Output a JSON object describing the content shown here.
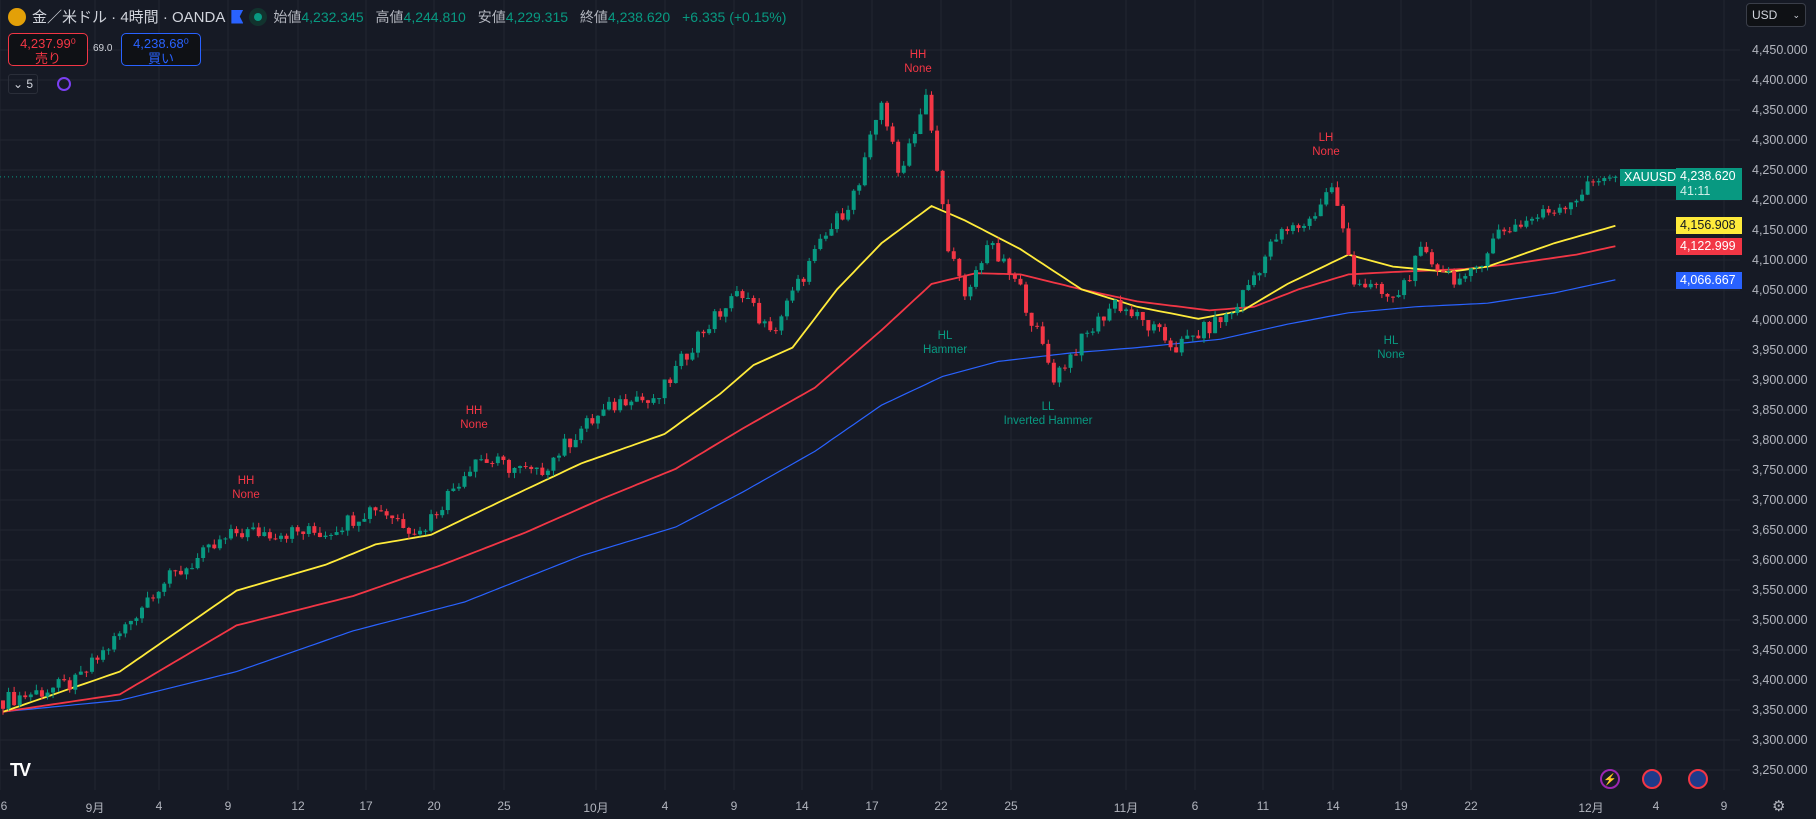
{
  "header": {
    "title": "金／米ドル · 4時間 · OANDA",
    "open_label": "始値",
    "open": "4,232.345",
    "high_label": "高値",
    "high": "4,244.810",
    "low_label": "安値",
    "low": "4,229.315",
    "close_label": "終値",
    "close": "4,238.620",
    "change": "+6.335 (+0.15%)"
  },
  "trade": {
    "sell_price": "4,237.99⁰",
    "sell_label": "売り",
    "spread": "69.0",
    "buy_price": "4,238.68⁰",
    "buy_label": "買い"
  },
  "indicators": {
    "collapse_count": "5"
  },
  "currency": {
    "label": "USD"
  },
  "price_axis": [
    "4,450.000",
    "4,400.000",
    "4,350.000",
    "4,300.000",
    "4,250.000",
    "4,200.000",
    "4,150.000",
    "4,100.000",
    "4,050.000",
    "4,000.000",
    "3,950.000",
    "3,900.000",
    "3,850.000",
    "3,800.000",
    "3,750.000",
    "3,700.000",
    "3,650.000",
    "3,600.000",
    "3,550.000",
    "3,500.000",
    "3,450.000",
    "3,400.000",
    "3,350.000",
    "3,300.000",
    "3,250.000"
  ],
  "badges": {
    "symbol": "XAUUSD",
    "last": "4,238.620",
    "countdown": "41:11",
    "ma_yellow": "4,156.908",
    "ma_red": "4,122.999",
    "ma_blue": "4,066.667"
  },
  "date_axis": [
    "6",
    "9月",
    "4",
    "9",
    "12",
    "17",
    "20",
    "25",
    "10月",
    "4",
    "9",
    "14",
    "17",
    "22",
    "25",
    "11月",
    "6",
    "11",
    "14",
    "19",
    "22",
    "12月",
    "4",
    "9"
  ],
  "annotations": [
    {
      "a": "HH",
      "b": "None"
    },
    {
      "a": "HH",
      "b": "None"
    },
    {
      "a": "HH",
      "b": "None"
    },
    {
      "a": "LH",
      "b": "None"
    },
    {
      "a": "HL",
      "b": "Hammer"
    },
    {
      "a": "LL",
      "b": "Inverted Hammer"
    },
    {
      "a": "HL",
      "b": "None"
    }
  ],
  "colors": {
    "up": "#089981",
    "down": "#f23645",
    "ma_yellow": "#ffeb3b",
    "ma_red": "#f23645",
    "ma_blue": "#2962ff"
  },
  "chart_data": {
    "type": "candlestick",
    "price_range": [
      3250,
      4450
    ],
    "bars": 290,
    "price_path": [
      [
        0,
        3366
      ],
      [
        13,
        3395
      ],
      [
        21,
        3476
      ],
      [
        27,
        3550
      ],
      [
        42,
        3646
      ],
      [
        58,
        3646
      ],
      [
        67,
        3690
      ],
      [
        75,
        3646
      ],
      [
        85,
        3771
      ],
      [
        96,
        3742
      ],
      [
        104,
        3819
      ],
      [
        113,
        3877
      ],
      [
        117,
        3858
      ],
      [
        125,
        3974
      ],
      [
        133,
        4050
      ],
      [
        138,
        3974
      ],
      [
        146,
        4109
      ],
      [
        154,
        4224
      ],
      [
        158,
        4369
      ],
      [
        161,
        4244
      ],
      [
        166,
        4369
      ],
      [
        170,
        4128
      ],
      [
        173,
        4031
      ],
      [
        177,
        4128
      ],
      [
        183,
        4050
      ],
      [
        189,
        3906
      ],
      [
        194,
        3964
      ],
      [
        200,
        4031
      ],
      [
        211,
        3954
      ],
      [
        221,
        4012
      ],
      [
        229,
        4137
      ],
      [
        235,
        4166
      ],
      [
        239,
        4224
      ],
      [
        243,
        4070
      ],
      [
        250,
        4031
      ],
      [
        255,
        4109
      ],
      [
        263,
        4060
      ],
      [
        269,
        4147
      ],
      [
        277,
        4176
      ],
      [
        283,
        4205
      ],
      [
        288,
        4244
      ],
      [
        290,
        4238
      ]
    ],
    "ma_yellow": [
      [
        0,
        3347
      ],
      [
        21,
        3414
      ],
      [
        42,
        3549
      ],
      [
        58,
        3592
      ],
      [
        67,
        3626
      ],
      [
        77,
        3642
      ],
      [
        90,
        3700
      ],
      [
        104,
        3761
      ],
      [
        119,
        3810
      ],
      [
        129,
        3877
      ],
      [
        135,
        3925
      ],
      [
        142,
        3954
      ],
      [
        150,
        4051
      ],
      [
        158,
        4128
      ],
      [
        167,
        4190
      ],
      [
        173,
        4166
      ],
      [
        183,
        4118
      ],
      [
        194,
        4051
      ],
      [
        204,
        4022
      ],
      [
        215,
        4002
      ],
      [
        223,
        4016
      ],
      [
        231,
        4060
      ],
      [
        242,
        4109
      ],
      [
        250,
        4089
      ],
      [
        260,
        4080
      ],
      [
        267,
        4089
      ],
      [
        279,
        4128
      ],
      [
        290,
        4157
      ]
    ],
    "ma_red": [
      [
        0,
        3347
      ],
      [
        21,
        3376
      ],
      [
        42,
        3491
      ],
      [
        63,
        3540
      ],
      [
        79,
        3592
      ],
      [
        94,
        3646
      ],
      [
        108,
        3703
      ],
      [
        121,
        3752
      ],
      [
        133,
        3819
      ],
      [
        146,
        3887
      ],
      [
        158,
        3983
      ],
      [
        167,
        4060
      ],
      [
        175,
        4078
      ],
      [
        183,
        4076
      ],
      [
        194,
        4051
      ],
      [
        204,
        4031
      ],
      [
        217,
        4016
      ],
      [
        225,
        4022
      ],
      [
        233,
        4051
      ],
      [
        242,
        4076
      ],
      [
        250,
        4080
      ],
      [
        263,
        4085
      ],
      [
        271,
        4093
      ],
      [
        283,
        4109
      ],
      [
        290,
        4123
      ]
    ],
    "ma_blue": [
      [
        0,
        3347
      ],
      [
        21,
        3366
      ],
      [
        42,
        3414
      ],
      [
        63,
        3482
      ],
      [
        83,
        3530
      ],
      [
        104,
        3607
      ],
      [
        121,
        3655
      ],
      [
        133,
        3713
      ],
      [
        146,
        3781
      ],
      [
        158,
        3858
      ],
      [
        169,
        3906
      ],
      [
        179,
        3931
      ],
      [
        192,
        3945
      ],
      [
        204,
        3954
      ],
      [
        219,
        3968
      ],
      [
        231,
        3993
      ],
      [
        242,
        4012
      ],
      [
        254,
        4022
      ],
      [
        267,
        4028
      ],
      [
        279,
        4045
      ],
      [
        290,
        4067
      ]
    ],
    "last_price": 4238.62
  }
}
